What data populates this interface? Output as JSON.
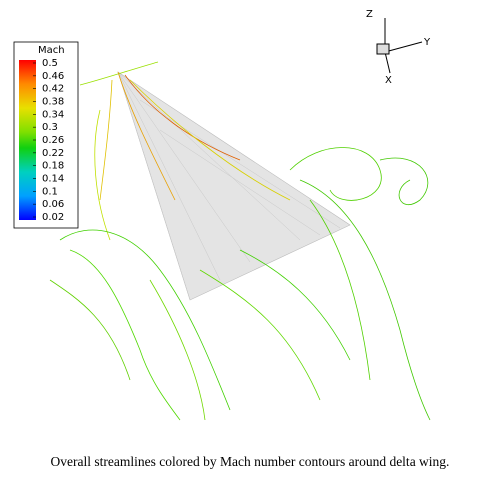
{
  "legend": {
    "title": "Mach",
    "ticks": [
      0.5,
      0.46,
      0.42,
      0.38,
      0.34,
      0.3,
      0.26,
      0.22,
      0.18,
      0.14,
      0.1,
      0.06,
      0.02
    ]
  },
  "axes_triad": {
    "z": "Z",
    "y": "Y",
    "x": "X"
  },
  "caption": "Overall streamlines colored by Mach number contours around delta wing."
}
